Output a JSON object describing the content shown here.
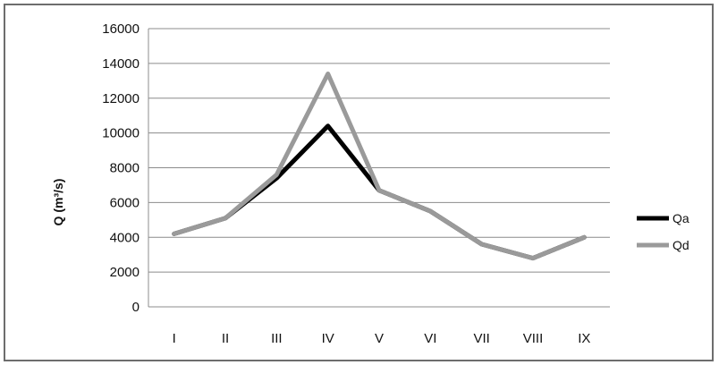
{
  "chart_data": {
    "type": "line",
    "title": "",
    "xlabel": "",
    "ylabel": "Q (m³/s)",
    "categories": [
      "I",
      "II",
      "III",
      "IV",
      "V",
      "VI",
      "VII",
      "VIII",
      "IX"
    ],
    "ylim": [
      0,
      16000
    ],
    "yticks": [
      0,
      2000,
      4000,
      6000,
      8000,
      10000,
      12000,
      14000,
      16000
    ],
    "grid": true,
    "legend_position": "right",
    "series": [
      {
        "name": "Qa",
        "color": "#000000",
        "values": [
          4200,
          5100,
          7400,
          10400,
          6700,
          5500,
          3600,
          2800,
          4000
        ]
      },
      {
        "name": "Qd",
        "color": "#9a9a9a",
        "values": [
          4200,
          5100,
          7600,
          13400,
          6700,
          5500,
          3600,
          2800,
          4000
        ]
      }
    ]
  }
}
